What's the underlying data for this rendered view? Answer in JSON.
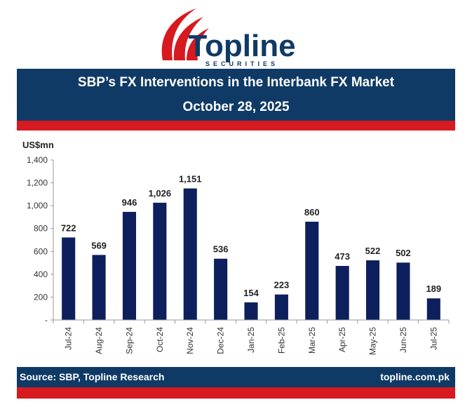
{
  "brand": {
    "name": "Topline",
    "tagline": "SECURITIES"
  },
  "header": {
    "title": "SBP’s FX Interventions in the Interbank FX Market",
    "date": "October 28, 2025"
  },
  "footer": {
    "source": "Source: SBP, Topline Research",
    "url": "topline.com.pk"
  },
  "colors": {
    "navy": "#0f3a66",
    "red": "#d71920",
    "bar": "#0d1f5c"
  },
  "chart_data": {
    "type": "bar",
    "ylabel": "US$mn",
    "ylim": [
      0,
      1400
    ],
    "yticks": [
      0,
      200,
      400,
      600,
      800,
      1000,
      1200,
      1400
    ],
    "ytick_labels": [
      "-",
      "200",
      "400",
      "600",
      "800",
      "1,000",
      "1,200",
      "1,400"
    ],
    "grid": false,
    "categories": [
      "Jul-24",
      "Aug-24",
      "Sep-24",
      "Oct-24",
      "Nov-24",
      "Dec-24",
      "Jan-25",
      "Feb-25",
      "Mar-25",
      "Apr-25",
      "May-25",
      "Jun-25",
      "Jul-25"
    ],
    "values": [
      722,
      569,
      946,
      1026,
      1151,
      536,
      154,
      223,
      860,
      473,
      522,
      502,
      189
    ],
    "value_labels": [
      "722",
      "569",
      "946",
      "1,026",
      "1,151",
      "536",
      "154",
      "223",
      "860",
      "473",
      "522",
      "502",
      "189"
    ]
  }
}
